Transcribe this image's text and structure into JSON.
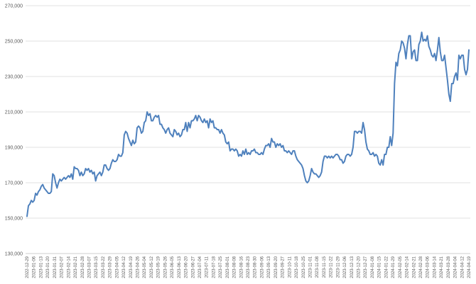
{
  "chart_data": {
    "type": "line",
    "title": "",
    "xlabel": "",
    "ylabel": "",
    "ylim": [
      130000,
      270000
    ],
    "yticks": [
      130000,
      150000,
      170000,
      190000,
      210000,
      230000,
      250000,
      270000
    ],
    "ytick_labels": [
      "130,000",
      "150,000",
      "170,000",
      "190,000",
      "210,000",
      "230,000",
      "250,000",
      "270,000"
    ],
    "grid": true,
    "legend": "none",
    "line_color": "#4f81bd",
    "xtick_labels": [
      "2022-12-29",
      "2023-01-06",
      "2023-01-13",
      "2023-01-20",
      "2023-01-31",
      "2023-02-07",
      "2023-02-14",
      "2023-02-21",
      "2023-02-28",
      "2023-03-07",
      "2023-03-15",
      "2023-03-22",
      "2023-03-29",
      "2023-04-05",
      "2023-04-12",
      "2023-04-19",
      "2023-04-26",
      "2023-05-04",
      "2023-05-12",
      "2023-05-19",
      "2023-05-26",
      "2023-06-05",
      "2023-06-13",
      "2023-06-20",
      "2023-06-27",
      "2023-07-04",
      "2023-07-11",
      "2023-07-18",
      "2023-07-25",
      "2023-08-01",
      "2023-08-08",
      "2023-08-16",
      "2023-08-23",
      "2023-08-30",
      "2023-09-06",
      "2023-09-13",
      "2023-09-20",
      "2023-09-27",
      "2023-10-11",
      "2023-10-18",
      "2023-10-25",
      "2023-11-01",
      "2023-11-08",
      "2023-11-15",
      "2023-11-22",
      "2023-11-29",
      "2023-12-06",
      "2023-12-13",
      "2023-12-20",
      "2023-12-27",
      "2024-01-08",
      "2024-01-15",
      "2024-01-22",
      "2024-01-29",
      "2024-02-05",
      "2024-02-14",
      "2024-02-21",
      "2024-02-28",
      "2024-03-06",
      "2024-03-14",
      "2024-03-21",
      "2024-03-28",
      "2024-04-04",
      "2024-04-12",
      "2024-04-19"
    ],
    "series": [
      {
        "values": [
          151000,
          157000,
          158000,
          160000,
          159000,
          160000,
          164000,
          163000,
          165000,
          166000,
          168000,
          169000,
          167000,
          166000,
          165000,
          164000,
          164000,
          165000,
          175000,
          174000,
          170000,
          167000,
          170000,
          172000,
          171000,
          172000,
          173000,
          172000,
          173000,
          174000,
          173000,
          175000,
          172000,
          179000,
          178000,
          178000,
          177000,
          174000,
          176000,
          174000,
          175000,
          178000,
          177000,
          178000,
          176000,
          177000,
          175000,
          176000,
          171000,
          174000,
          175000,
          176000,
          174000,
          176000,
          180000,
          180000,
          178000,
          177000,
          178000,
          181000,
          183000,
          182000,
          182000,
          183000,
          186000,
          185000,
          185000,
          187000,
          197000,
          199000,
          198000,
          195000,
          193000,
          191000,
          194000,
          192000,
          193000,
          201000,
          202000,
          201000,
          198000,
          199000,
          204000,
          205000,
          210000,
          208000,
          209000,
          205000,
          205000,
          207000,
          208000,
          207000,
          208000,
          203000,
          203000,
          201000,
          200000,
          198000,
          200000,
          201000,
          198000,
          197000,
          196000,
          200000,
          199000,
          197000,
          198000,
          196000,
          197000,
          200000,
          200000,
          204000,
          199000,
          204000,
          201000,
          205000,
          205000,
          206000,
          208000,
          205000,
          208000,
          207000,
          205000,
          204000,
          206000,
          204000,
          205000,
          201000,
          206000,
          204000,
          205000,
          201000,
          201000,
          200000,
          200000,
          198000,
          200000,
          198000,
          197000,
          193000,
          192000,
          193000,
          188000,
          189000,
          189000,
          188000,
          189000,
          188000,
          185000,
          186000,
          185000,
          188000,
          186000,
          189000,
          186000,
          187000,
          186000,
          188000,
          188000,
          189000,
          187000,
          187000,
          186000,
          186000,
          187000,
          186000,
          189000,
          191000,
          191000,
          192000,
          190000,
          195000,
          193000,
          193000,
          190000,
          192000,
          191000,
          192000,
          190000,
          191000,
          188000,
          188000,
          187000,
          188000,
          187000,
          186000,
          188000,
          188000,
          185000,
          183000,
          182000,
          181000,
          180000,
          178000,
          174000,
          171000,
          170000,
          171000,
          174000,
          178000,
          176000,
          175000,
          175000,
          174000,
          173000,
          174000,
          176000,
          182000,
          185000,
          185000,
          184000,
          185000,
          184000,
          185000,
          184000,
          185000,
          186000,
          186000,
          185000,
          183000,
          183000,
          181000,
          182000,
          185000,
          186000,
          186000,
          185000,
          186000,
          190000,
          199000,
          199000,
          198000,
          199000,
          199000,
          198000,
          204000,
          200000,
          193000,
          189000,
          188000,
          186000,
          186000,
          187000,
          185000,
          186000,
          185000,
          181000,
          180000,
          183000,
          180000,
          186000,
          186000,
          190000,
          190000,
          196000,
          191000,
          198000,
          226000,
          238000,
          236000,
          243000,
          245000,
          250000,
          249000,
          246000,
          240000,
          248000,
          253000,
          253000,
          240000,
          244000,
          245000,
          239000,
          239000,
          248000,
          250000,
          255000,
          250000,
          251000,
          250000,
          253000,
          247000,
          245000,
          242000,
          241000,
          243000,
          239000,
          245000,
          252000,
          244000,
          239000,
          239000,
          242000,
          235000,
          228000,
          220000,
          216000,
          226000,
          226000,
          230000,
          232000,
          228000,
          242000,
          240000,
          242000,
          242000,
          234000,
          231000,
          234000,
          245000
        ]
      }
    ]
  }
}
